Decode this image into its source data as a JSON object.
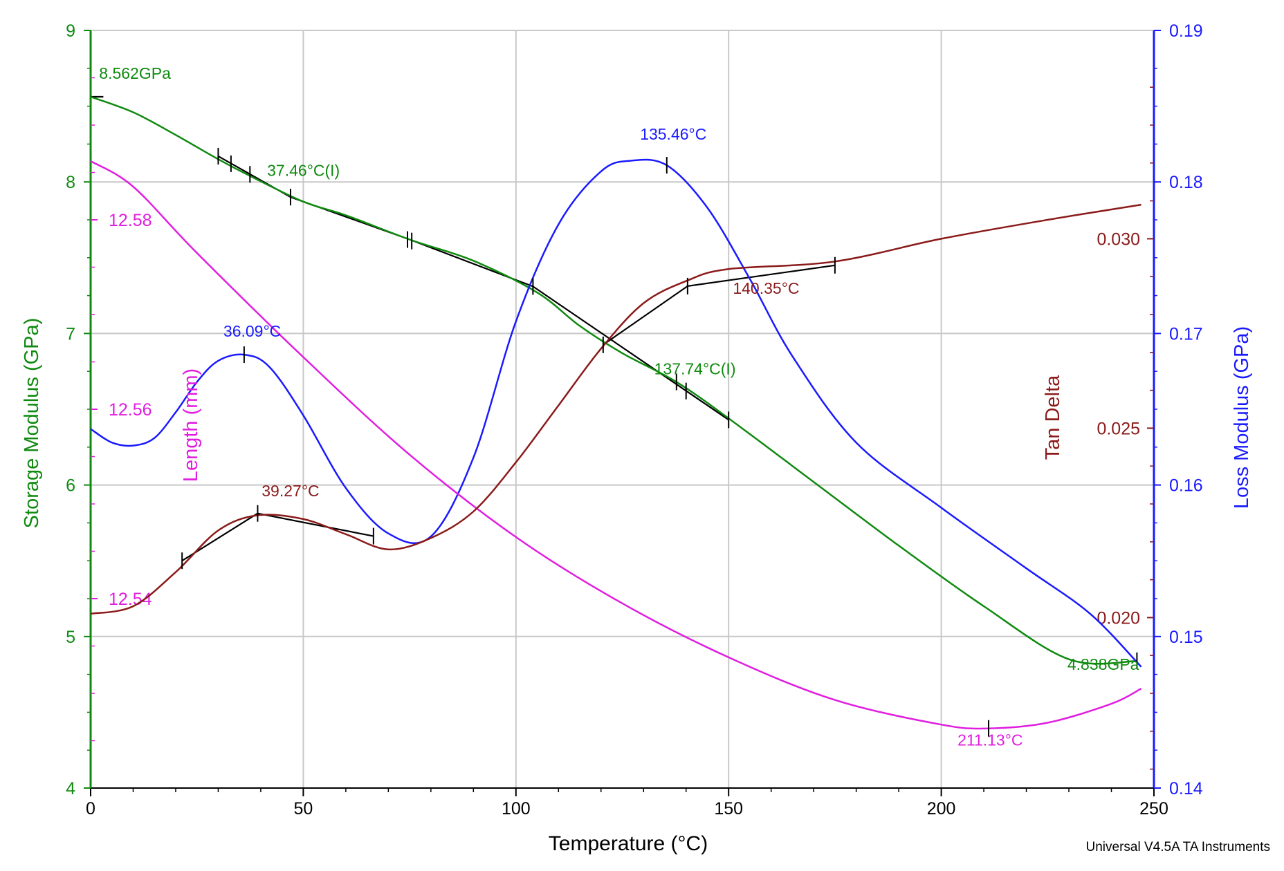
{
  "chart_data": {
    "type": "line",
    "xlabel": "Temperature (°C)",
    "footer": "Universal V4.5A TA Instruments",
    "xlim": [
      0,
      250
    ],
    "x_ticks": [
      0,
      50,
      100,
      150,
      200,
      250
    ],
    "x_tick_labels": [
      "0",
      "50",
      "100",
      "150",
      "200",
      "250"
    ],
    "axes": {
      "storage": {
        "label": "Storage Modulus (GPa)",
        "color": "#0f8a0f",
        "ylim": [
          4,
          9
        ],
        "ticks": [
          4,
          5,
          6,
          7,
          8,
          9
        ],
        "tick_labels": [
          "4",
          "5",
          "6",
          "7",
          "8",
          "9"
        ]
      },
      "loss": {
        "label": "Loss Modulus (GPa)",
        "color": "#1a1aff",
        "ylim": [
          0.14,
          0.19
        ],
        "ticks": [
          0.14,
          0.15,
          0.16,
          0.17,
          0.18,
          0.19
        ],
        "tick_labels": [
          "0.14",
          "0.15",
          "0.16",
          "0.17",
          "0.18",
          "0.19"
        ]
      },
      "length": {
        "label": "Length (mm)",
        "color": "#e01ee0",
        "ylim": [
          12.52,
          12.6
        ],
        "ticks": [
          12.54,
          12.56,
          12.58
        ],
        "tick_labels": [
          "12.54",
          "12.56",
          "12.58"
        ]
      },
      "tandelta": {
        "label": "Tan Delta",
        "color": "#8b1a1a",
        "ylim": [
          0.0155,
          0.0355
        ],
        "ticks": [
          0.02,
          0.025,
          0.03
        ],
        "tick_labels": [
          "0.020",
          "0.025",
          "0.030"
        ]
      }
    },
    "series": [
      {
        "name": "Storage Modulus",
        "axis": "storage",
        "color": "#0f8a0f",
        "x": [
          0,
          10,
          20,
          30,
          37.46,
          50,
          60,
          75,
          90,
          105,
          115,
          125,
          137.74,
          150,
          170,
          190,
          210,
          230,
          246
        ],
        "y": [
          8.562,
          8.46,
          8.31,
          8.15,
          8.04,
          7.87,
          7.78,
          7.62,
          7.48,
          7.27,
          7.05,
          6.87,
          6.68,
          6.44,
          6.02,
          5.6,
          5.2,
          4.85,
          4.838
        ]
      },
      {
        "name": "Loss Modulus",
        "axis": "loss",
        "color": "#1a1aff",
        "x": [
          0,
          5,
          10,
          15,
          20,
          25,
          30,
          36.09,
          42,
          50,
          60,
          70,
          80,
          90,
          100,
          110,
          120,
          127,
          135.46,
          145,
          155,
          165,
          180,
          200,
          220,
          235,
          247
        ],
        "y": [
          0.1637,
          0.1628,
          0.1626,
          0.1631,
          0.1648,
          0.1668,
          0.1682,
          0.1686,
          0.1678,
          0.1646,
          0.1598,
          0.1568,
          0.1566,
          0.1618,
          0.1708,
          0.1772,
          0.1807,
          0.1814,
          0.1811,
          0.1783,
          0.1736,
          0.1685,
          0.1628,
          0.1585,
          0.1545,
          0.1515,
          0.148
        ]
      },
      {
        "name": "Length",
        "axis": "length",
        "color": "#e01ee0",
        "x": [
          0,
          10,
          25,
          50,
          75,
          100,
          125,
          150,
          175,
          200,
          211.13,
          225,
          240,
          247
        ],
        "y": [
          12.5862,
          12.5835,
          12.5765,
          12.5655,
          12.5552,
          12.5465,
          12.5395,
          12.5338,
          12.5293,
          12.5267,
          12.5263,
          12.5269,
          12.5289,
          12.5305
        ]
      },
      {
        "name": "Tan Delta",
        "axis": "tandelta",
        "color": "#8b1a1a",
        "x": [
          0,
          10,
          20,
          30,
          39.27,
          50,
          60,
          70,
          80,
          90,
          100,
          110,
          120,
          130,
          140.35,
          150,
          175,
          200,
          225,
          247
        ],
        "y": [
          0.0201,
          0.0203,
          0.0212,
          0.0223,
          0.0227,
          0.0226,
          0.0222,
          0.0218,
          0.0221,
          0.0228,
          0.0241,
          0.0256,
          0.0271,
          0.0283,
          0.0289,
          0.0292,
          0.0294,
          0.03,
          0.0305,
          0.0309
        ]
      }
    ],
    "annotations": [
      {
        "text": "8.562GPa",
        "axis": "storage",
        "x": 2,
        "y": 8.68,
        "color": "#0f8a0f",
        "anchor": "start"
      },
      {
        "text": "37.46°C(I)",
        "axis": "storage",
        "x": 41.5,
        "y": 8.04,
        "color": "#0f8a0f",
        "anchor": "start"
      },
      {
        "text": "137.74°C(I)",
        "axis": "storage",
        "x": 132.5,
        "y": 6.73,
        "color": "#0f8a0f",
        "anchor": "start"
      },
      {
        "text": "4.838GPa",
        "axis": "storage",
        "x": 246.5,
        "y": 4.78,
        "color": "#0f8a0f",
        "anchor": "end"
      },
      {
        "text": "135.46°C",
        "axis": "loss",
        "x": 137,
        "y": 0.1828,
        "color": "#1a1aff",
        "anchor": "middle"
      },
      {
        "text": "36.09°C",
        "axis": "loss",
        "x": 38,
        "y": 0.1698,
        "color": "#1a1aff",
        "anchor": "middle"
      },
      {
        "text": "211.13°C",
        "axis": "length",
        "x": 211.5,
        "y": 12.5245,
        "color": "#e01ee0",
        "anchor": "middle"
      },
      {
        "text": "39.27°C",
        "axis": "tandelta",
        "x": 47,
        "y": 0.0232,
        "color": "#8b1a1a",
        "anchor": "middle"
      },
      {
        "text": "140.35°C",
        "axis": "tandelta",
        "x": 151,
        "y": 0.02855,
        "color": "#8b1a1a",
        "anchor": "start"
      }
    ],
    "construction_lines": [
      {
        "axis": "storage",
        "x": [
          0,
          3
        ],
        "y": [
          8.562,
          8.562
        ]
      },
      {
        "axis": "storage",
        "x": [
          30,
          47,
          75
        ],
        "y": [
          8.17,
          7.9,
          7.62
        ]
      },
      {
        "axis": "storage",
        "x": [
          75,
          104,
          150
        ],
        "y": [
          7.62,
          7.31,
          6.43
        ]
      },
      {
        "axis": "tandelta",
        "x": [
          21.5,
          39.27,
          66.5
        ],
        "y": [
          0.0215,
          0.02275,
          0.02215
        ]
      },
      {
        "axis": "tandelta",
        "x": [
          120.5,
          140.35,
          175
        ],
        "y": [
          0.0272,
          0.02875,
          0.0293
        ]
      }
    ],
    "markers": [
      {
        "axis": "storage",
        "x": 30,
        "y": 8.17
      },
      {
        "axis": "storage",
        "x": 33,
        "y": 8.12
      },
      {
        "axis": "storage",
        "x": 37.46,
        "y": 8.05
      },
      {
        "axis": "storage",
        "x": 47,
        "y": 7.9
      },
      {
        "axis": "storage",
        "x": 74.5,
        "y": 7.62
      },
      {
        "axis": "storage",
        "x": 75.5,
        "y": 7.61
      },
      {
        "axis": "storage",
        "x": 104,
        "y": 7.31
      },
      {
        "axis": "storage",
        "x": 137.74,
        "y": 6.68
      },
      {
        "axis": "storage",
        "x": 140,
        "y": 6.62
      },
      {
        "axis": "storage",
        "x": 150,
        "y": 6.43
      },
      {
        "axis": "storage",
        "x": 246,
        "y": 4.84
      },
      {
        "axis": "loss",
        "x": 36.09,
        "y": 0.1686
      },
      {
        "axis": "loss",
        "x": 135.46,
        "y": 0.1811
      },
      {
        "axis": "length",
        "x": 211.13,
        "y": 12.5263
      },
      {
        "axis": "tandelta",
        "x": 21.5,
        "y": 0.0215
      },
      {
        "axis": "tandelta",
        "x": 39.27,
        "y": 0.02275
      },
      {
        "axis": "tandelta",
        "x": 66.5,
        "y": 0.02215
      },
      {
        "axis": "tandelta",
        "x": 120.5,
        "y": 0.0272
      },
      {
        "axis": "tandelta",
        "x": 140.35,
        "y": 0.02875
      },
      {
        "axis": "tandelta",
        "x": 175,
        "y": 0.0293
      }
    ]
  }
}
